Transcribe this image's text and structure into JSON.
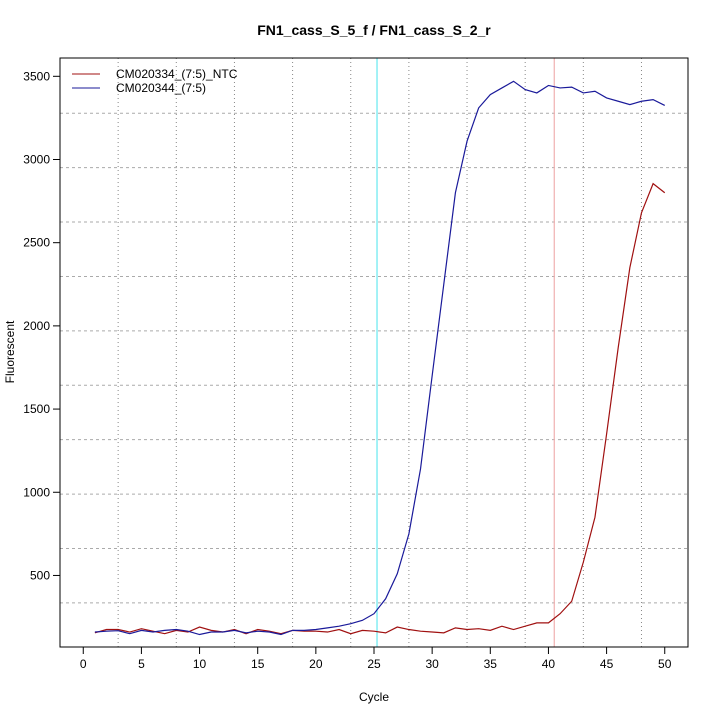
{
  "chart_data": {
    "type": "line",
    "title": "FN1_cass_S_5_f / FN1_cass_S_2_r",
    "xlabel": "Cycle",
    "ylabel": "Fluorescent",
    "xlim": [
      -2,
      52
    ],
    "ylim": [
      70,
      3610
    ],
    "xticks": [
      0,
      5,
      10,
      15,
      20,
      25,
      30,
      35,
      40,
      45,
      50
    ],
    "yticks": [
      500,
      1000,
      1500,
      2000,
      2500,
      3000,
      3500
    ],
    "x_grid": [
      3,
      8,
      13,
      18,
      23,
      28,
      33,
      38,
      43,
      48
    ],
    "y_grid": [
      335,
      662,
      989,
      1316,
      1643,
      1970,
      2297,
      2624,
      2951,
      3278
    ],
    "grid": true,
    "legend_position": "top-left",
    "threshold_lines": [
      {
        "x": 25.26,
        "color": "#66e8f0"
      },
      {
        "x": 40.5,
        "color": "#f0b0b0"
      }
    ],
    "x": [
      1,
      2,
      3,
      4,
      5,
      6,
      7,
      8,
      9,
      10,
      11,
      12,
      13,
      14,
      15,
      16,
      17,
      18,
      19,
      20,
      21,
      22,
      23,
      24,
      25,
      26,
      27,
      28,
      29,
      30,
      31,
      32,
      33,
      34,
      35,
      36,
      37,
      38,
      39,
      40,
      41,
      42,
      43,
      44,
      45,
      46,
      47,
      48,
      49,
      50
    ],
    "series": [
      {
        "name": "CM020334_(7:5)_NTC",
        "color": "#a01010",
        "values": [
          155,
          175,
          175,
          160,
          180,
          165,
          150,
          170,
          160,
          190,
          170,
          160,
          175,
          150,
          175,
          165,
          150,
          170,
          165,
          165,
          160,
          175,
          150,
          170,
          165,
          155,
          190,
          175,
          165,
          160,
          155,
          185,
          175,
          180,
          170,
          195,
          175,
          195,
          215,
          215,
          270,
          345,
          580,
          850,
          1350,
          1870,
          2350,
          2680,
          2855,
          2800
        ]
      },
      {
        "name": "CM020344_(7:5)",
        "color": "#1a1a9a",
        "values": [
          160,
          165,
          168,
          150,
          170,
          160,
          170,
          175,
          165,
          145,
          160,
          160,
          170,
          155,
          165,
          160,
          145,
          170,
          170,
          175,
          185,
          195,
          210,
          230,
          270,
          360,
          510,
          750,
          1140,
          1700,
          2250,
          2800,
          3110,
          3310,
          3390,
          3430,
          3470,
          3420,
          3400,
          3445,
          3430,
          3435,
          3400,
          3410,
          3370,
          3350,
          3330,
          3350,
          3360,
          3325
        ]
      }
    ]
  }
}
